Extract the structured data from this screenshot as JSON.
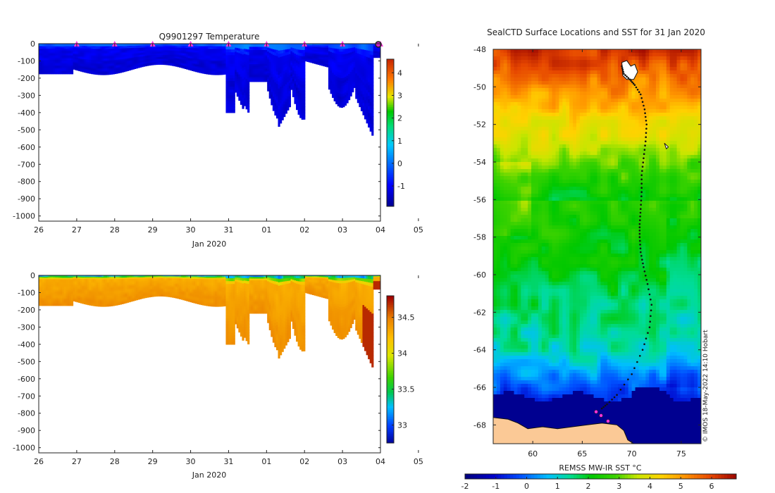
{
  "chart_data": [
    {
      "type": "heatmap",
      "id": "temp",
      "title": "Q9901297  Temperature",
      "xlabel": "Jan 2020",
      "x_ticks": [
        "26",
        "27",
        "28",
        "29",
        "30",
        "31",
        "01",
        "02",
        "03",
        "04",
        "05"
      ],
      "y_ticks": [
        "0",
        "-100",
        "-200",
        "-300",
        "-400",
        "-500",
        "-600",
        "-700",
        "-800",
        "-900",
        "-1000"
      ],
      "ylim": [
        -1030,
        0
      ],
      "colorbar": {
        "ticks": [
          "4",
          "3",
          "2",
          "1",
          "0",
          "-1"
        ],
        "range": [
          -1.9,
          4.6
        ]
      },
      "surface_markers": [
        27,
        28,
        29,
        30,
        31,
        32,
        33,
        34,
        35
      ]
    },
    {
      "type": "heatmap",
      "id": "salinity",
      "title": "",
      "xlabel": "Jan 2020",
      "x_ticks": [
        "26",
        "27",
        "28",
        "29",
        "30",
        "31",
        "01",
        "02",
        "03",
        "04",
        "05"
      ],
      "y_ticks": [
        "0",
        "-100",
        "-200",
        "-300",
        "-400",
        "-500",
        "-600",
        "-700",
        "-800",
        "-900",
        "-1000"
      ],
      "ylim": [
        -1030,
        0
      ],
      "colorbar": {
        "ticks": [
          "34.5",
          "34",
          "33.5",
          "33"
        ],
        "range": [
          32.75,
          34.8
        ]
      }
    },
    {
      "type": "heatmap",
      "id": "map",
      "title": "SealCTD Surface Locations and SST for 31 Jan 2020",
      "x_ticks": [
        "60",
        "65",
        "70",
        "75"
      ],
      "y_ticks": [
        "-48",
        "-50",
        "-52",
        "-54",
        "-56",
        "-58",
        "-60",
        "-62",
        "-64",
        "-66",
        "-68"
      ],
      "xlim": [
        56,
        77
      ],
      "ylim": [
        -69,
        -48
      ],
      "colorbar": {
        "label": "REMSS MW-IR SST °C",
        "ticks": [
          "-2",
          "-1",
          "0",
          "1",
          "2",
          "3",
          "4",
          "5",
          "6"
        ],
        "range": [
          -2,
          6.8
        ]
      },
      "track_lon": [
        69.0,
        69.2,
        69.8,
        70.3,
        70.9,
        71.3,
        71.5,
        71.4,
        71.2,
        71.0,
        71.0,
        70.9,
        70.8,
        70.8,
        70.9,
        71.2,
        71.6,
        72.0,
        71.8,
        71.1,
        70.0,
        68.5,
        67.5,
        66.8
      ],
      "track_lat": [
        -48.9,
        -49.3,
        -49.6,
        -49.9,
        -50.4,
        -51.2,
        -52.0,
        -52.9,
        -53.8,
        -54.7,
        -55.6,
        -56.5,
        -57.3,
        -58.0,
        -58.8,
        -59.6,
        -60.5,
        -61.6,
        -62.8,
        -64.0,
        -65.3,
        -66.4,
        -66.9,
        -67.2
      ],
      "watermark": "© IMOS 18-May-2022 14:10 Hobart"
    }
  ]
}
